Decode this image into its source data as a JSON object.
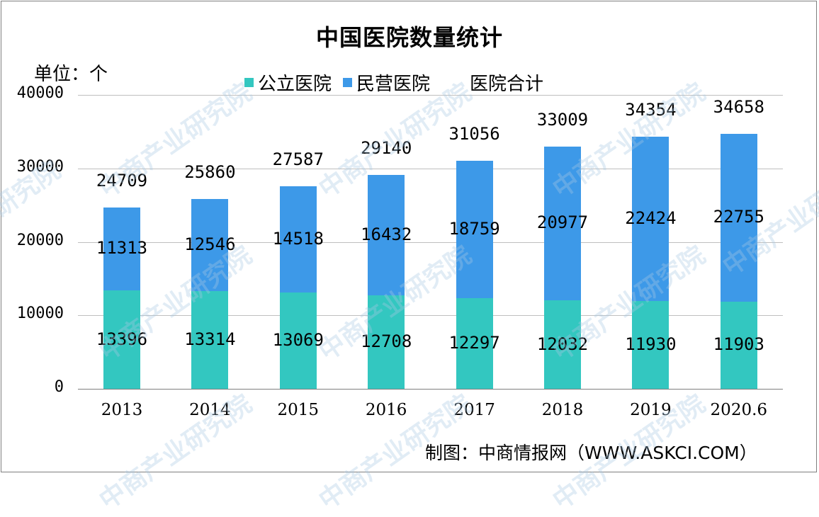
{
  "title": "中国医院数量统计",
  "unit_label": "单位：个",
  "legend": [
    {
      "label": "公立医院",
      "color": "#33c7c0"
    },
    {
      "label": "民营医院",
      "color": "#3d99e8"
    },
    {
      "label": "医院合计",
      "color": "none"
    }
  ],
  "source": "制图：中商情报网（WWW.ASKCI.COM）",
  "watermark": "中商产业研究院",
  "y_ticks": [
    "0",
    "10000",
    "20000",
    "30000",
    "40000"
  ],
  "chart_data": {
    "type": "bar",
    "stacked": true,
    "title": "中国医院数量统计",
    "xlabel": "",
    "ylabel": "单位：个",
    "ylim": [
      0,
      40000
    ],
    "grid": true,
    "legend_position": "top",
    "categories": [
      "2013",
      "2014",
      "2015",
      "2016",
      "2017",
      "2018",
      "2019",
      "2020.6"
    ],
    "series": [
      {
        "name": "公立医院",
        "color": "#33c7c0",
        "values": [
          13396,
          13314,
          13069,
          12708,
          12297,
          12032,
          11930,
          11903
        ]
      },
      {
        "name": "民营医院",
        "color": "#3d99e8",
        "values": [
          11313,
          12546,
          14518,
          16432,
          18759,
          20977,
          22424,
          22755
        ]
      },
      {
        "name": "医院合计",
        "color": "none",
        "values": [
          24709,
          25860,
          27587,
          29140,
          31056,
          33009,
          34354,
          34658
        ]
      }
    ]
  }
}
